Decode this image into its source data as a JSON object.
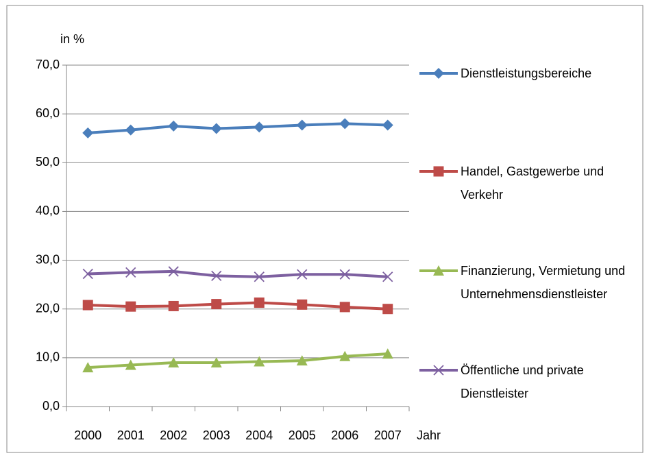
{
  "chart_data": {
    "type": "line",
    "y_label": "in %",
    "x_label": "Jahr",
    "categories": [
      "2000",
      "2001",
      "2002",
      "2003",
      "2004",
      "2005",
      "2006",
      "2007"
    ],
    "ylim": [
      0,
      70
    ],
    "yticks": [
      {
        "value": 0,
        "label": "0,0"
      },
      {
        "value": 10,
        "label": "10,0"
      },
      {
        "value": 20,
        "label": "20,0"
      },
      {
        "value": 30,
        "label": "30,0"
      },
      {
        "value": 40,
        "label": "40,0"
      },
      {
        "value": 50,
        "label": "50,0"
      },
      {
        "value": 60,
        "label": "60,0"
      },
      {
        "value": 70,
        "label": "70,0"
      }
    ],
    "grid": true,
    "legend": "right",
    "series": [
      {
        "name": "Dienstleistungsbereiche",
        "color": "#4a7ebb",
        "marker": "diamond",
        "values": [
          56.1,
          56.7,
          57.5,
          57.0,
          57.3,
          57.7,
          58.0,
          57.7
        ]
      },
      {
        "name": "Handel, Gastgewerbe und Verkehr",
        "color": "#be4b48",
        "marker": "square",
        "values": [
          20.8,
          20.5,
          20.6,
          21.0,
          21.3,
          20.9,
          20.4,
          20.0
        ]
      },
      {
        "name": "Finanzierung, Vermietung und Unternehmensdienstleister",
        "color": "#98b954",
        "marker": "triangle",
        "values": [
          8.0,
          8.5,
          9.0,
          9.0,
          9.2,
          9.4,
          10.3,
          10.8
        ]
      },
      {
        "name": "Öffentliche und private Dienstleister",
        "color": "#7d60a0",
        "marker": "x",
        "values": [
          27.2,
          27.5,
          27.7,
          26.8,
          26.6,
          27.1,
          27.1,
          26.6
        ]
      }
    ]
  }
}
